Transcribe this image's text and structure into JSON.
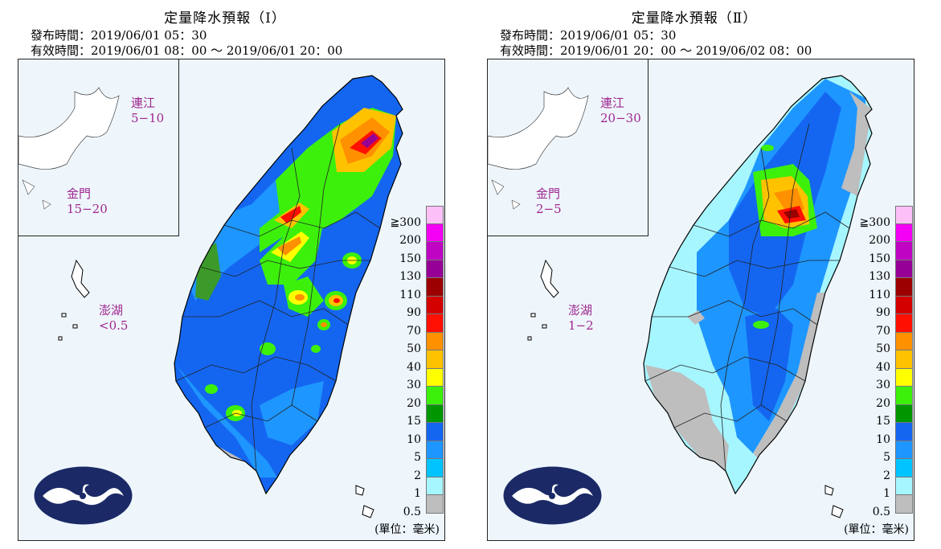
{
  "panels": [
    {
      "title": "定量降水預報（Ⅰ）",
      "issued": "發布時間：2019/06/01 05：30",
      "valid": "有效時間：2019/06/01 08：00 ～ 2019/06/01 20：00",
      "islands": [
        {
          "name": "連江",
          "value": "5−10"
        },
        {
          "name": "金門",
          "value": "15−20"
        },
        {
          "name": "澎湖",
          "value": "<0.5"
        }
      ]
    },
    {
      "title": "定量降水預報（Ⅱ）",
      "issued": "發布時間：2019/06/01 05：30",
      "valid": "有效時間：2019/06/01 20：00 ～ 2019/06/02 08：00",
      "islands": [
        {
          "name": "連江",
          "value": "20−30"
        },
        {
          "name": "金門",
          "value": "2−5"
        },
        {
          "name": "澎湖",
          "value": "1−2"
        }
      ]
    }
  ],
  "legend": {
    "labels": [
      "≧300",
      "200",
      "150",
      "130",
      "110",
      "90",
      "70",
      "50",
      "40",
      "30",
      "20",
      "15",
      "10",
      "5",
      "2",
      "1",
      "0.5"
    ],
    "colors": [
      "#fdc0f6",
      "#f400f4",
      "#c004c4",
      "#960096",
      "#9c0000",
      "#d40000",
      "#ff1000",
      "#ff9000",
      "#ffc200",
      "#ffff00",
      "#3cf00c",
      "#009600",
      "#1466f0",
      "#1e96ff",
      "#00c4ff",
      "#a6f6ff",
      "#bebebe"
    ],
    "unit": "(單位：毫米)"
  },
  "logo": "cwb-logo"
}
